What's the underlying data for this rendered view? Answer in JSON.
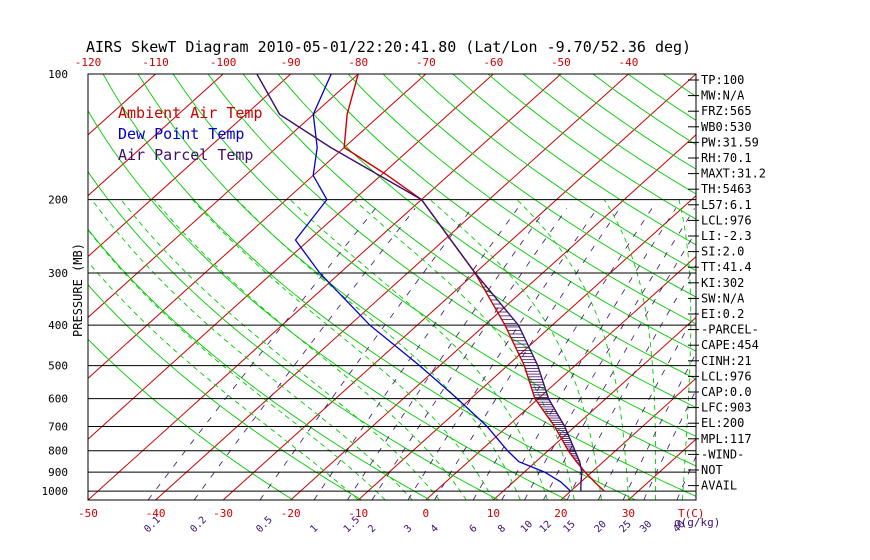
{
  "chart_data": {
    "type": "line",
    "title": "AIRS SkewT Diagram 2010-05-01/22:20:41.80 (Lat/Lon -9.70/52.36 deg)",
    "ylabel": "PRESSURE (MB)",
    "xlabel": "T(C)",
    "mixing_ratio_unit": "q(g/kg)",
    "ylim": [
      1050,
      100
    ],
    "y_log_scale": true,
    "x_bottom_range": [
      -50,
      40
    ],
    "x_top_range": [
      -120,
      -40
    ],
    "pressure_ticks": [
      100,
      200,
      300,
      400,
      500,
      600,
      700,
      800,
      900,
      1000
    ],
    "bottom_temp_ticks": [
      -50,
      -40,
      -30,
      -20,
      -10,
      0,
      10,
      20,
      30
    ],
    "top_temp_ticks": [
      -120,
      -110,
      -100,
      -90,
      -80,
      -70,
      -60,
      -50,
      -40
    ],
    "mixing_ratio_labels": [
      "0.1",
      "0.2",
      "0.5",
      "1",
      "1.5",
      "2",
      "3",
      "4",
      "6",
      "8",
      "10",
      "12",
      "15",
      "20",
      "25",
      "30",
      "40"
    ],
    "legend_entries": [
      {
        "label": "Ambient Air Temp",
        "color": "#cc0000"
      },
      {
        "label": "Dew Point Temp",
        "color": "#0000cc"
      },
      {
        "label": "Air Parcel Temp",
        "color": "#3b0f6b"
      }
    ],
    "series": [
      {
        "name": "Ambient Air Temp",
        "color": "#cc0000",
        "points": [
          {
            "p": 1000,
            "t": 25
          },
          {
            "p": 975,
            "t": 23.5
          },
          {
            "p": 950,
            "t": 22
          },
          {
            "p": 925,
            "t": 20.5
          },
          {
            "p": 900,
            "t": 19
          },
          {
            "p": 850,
            "t": 16
          },
          {
            "p": 800,
            "t": 13
          },
          {
            "p": 700,
            "t": 7
          },
          {
            "p": 600,
            "t": -0.5
          },
          {
            "p": 500,
            "t": -7.5
          },
          {
            "p": 400,
            "t": -17
          },
          {
            "p": 300,
            "t": -30
          },
          {
            "p": 250,
            "t": -39
          },
          {
            "p": 200,
            "t": -50
          },
          {
            "p": 175,
            "t": -59
          },
          {
            "p": 150,
            "t": -70
          },
          {
            "p": 125,
            "t": -75
          },
          {
            "p": 100,
            "t": -80
          }
        ]
      },
      {
        "name": "Dew Point Temp",
        "color": "#0000cc",
        "points": [
          {
            "p": 1000,
            "t": 20
          },
          {
            "p": 950,
            "t": 17
          },
          {
            "p": 900,
            "t": 13
          },
          {
            "p": 850,
            "t": 7.5
          },
          {
            "p": 800,
            "t": 4
          },
          {
            "p": 700,
            "t": -3
          },
          {
            "p": 600,
            "t": -12
          },
          {
            "p": 500,
            "t": -23
          },
          {
            "p": 400,
            "t": -37
          },
          {
            "p": 300,
            "t": -53
          },
          {
            "p": 250,
            "t": -62
          },
          {
            "p": 200,
            "t": -64
          },
          {
            "p": 175,
            "t": -70
          },
          {
            "p": 150,
            "t": -74
          },
          {
            "p": 125,
            "t": -80
          },
          {
            "p": 100,
            "t": -84
          }
        ]
      },
      {
        "name": "Air Parcel Temp",
        "color": "#3b0f6b",
        "points": [
          {
            "p": 1000,
            "t": 21.5
          },
          {
            "p": 950,
            "t": 20
          },
          {
            "p": 900,
            "t": 18.5
          },
          {
            "p": 850,
            "t": 16.5
          },
          {
            "p": 800,
            "t": 14
          },
          {
            "p": 700,
            "t": 8.5
          },
          {
            "p": 600,
            "t": 1.5
          },
          {
            "p": 500,
            "t": -5.5
          },
          {
            "p": 400,
            "t": -15
          },
          {
            "p": 300,
            "t": -30
          },
          {
            "p": 250,
            "t": -39
          },
          {
            "p": 200,
            "t": -50
          },
          {
            "p": 150,
            "t": -72
          },
          {
            "p": 125,
            "t": -85
          },
          {
            "p": 100,
            "t": -95
          }
        ]
      }
    ],
    "indices": [
      "TP:100",
      "MW:N/A",
      "FRZ:565",
      "WB0:530",
      "PW:31.59",
      "RH:70.1",
      "MAXT:31.2",
      "TH:5463",
      "L57:6.1",
      "LCL:976",
      "LI:-2.3",
      "SI:2.0",
      "TT:41.4",
      "KI:302",
      "SW:N/A",
      "EI:0.2",
      "-PARCEL-",
      "CAPE:454",
      "CINH:21",
      "LCL:976",
      "CAP:0.0",
      "LFC:903",
      "EL:200",
      "MPL:117",
      "-WIND-",
      "NOT",
      "AVAIL"
    ],
    "colors": {
      "isotherm": "#cc0000",
      "dry_adiabat": "#00cc00",
      "moist_adiabat": "#00cc00",
      "mixing_ratio": "#3b0f6b",
      "isobar": "#000000",
      "axis_labels_temp": "#cc0000",
      "mixing_labels": "#3b0f6b"
    }
  }
}
